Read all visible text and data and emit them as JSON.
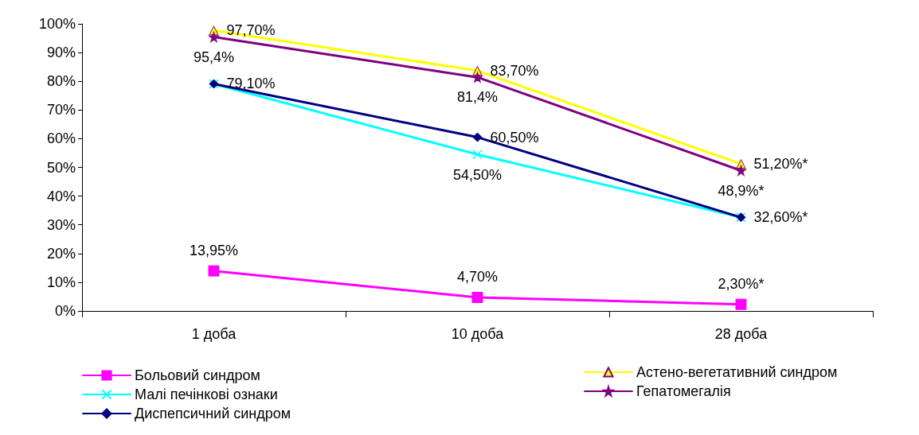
{
  "chart_data": {
    "type": "line",
    "categories": [
      "1 доба",
      "10 доба",
      "28 доба"
    ],
    "ylim": [
      0,
      100
    ],
    "yticks": [
      {
        "value": 0,
        "label": "0%"
      },
      {
        "value": 10,
        "label": "10%"
      },
      {
        "value": 20,
        "label": "20%"
      },
      {
        "value": 30,
        "label": "30%"
      },
      {
        "value": 40,
        "label": "40%"
      },
      {
        "value": 50,
        "label": "50%"
      },
      {
        "value": 60,
        "label": "60%"
      },
      {
        "value": 70,
        "label": "70%"
      },
      {
        "value": 80,
        "label": "80%"
      },
      {
        "value": 90,
        "label": "90%"
      },
      {
        "value": 100,
        "label": "100%"
      }
    ],
    "legend": "bottom",
    "series": [
      {
        "name": "Больовий синдром",
        "color": "#ff00ff",
        "marker": "square",
        "values": [
          13.95,
          4.7,
          2.3
        ],
        "value_labels": [
          "13,95%",
          "4,70%",
          "2,30%*"
        ]
      },
      {
        "name": "Астено-вегетативний синдром",
        "color": "#ffff00",
        "marker": "triangle",
        "values": [
          97.7,
          83.7,
          51.2
        ],
        "value_labels": [
          "97,70%",
          "83,70%",
          "51,20%*"
        ]
      },
      {
        "name": "Малі печінкові ознаки",
        "color": "#00ffff",
        "marker": "cross",
        "values": [
          79.1,
          54.5,
          32.6
        ],
        "value_labels": [
          null,
          "54,50%",
          null
        ]
      },
      {
        "name": "Гепатомегалія",
        "color": "#800080",
        "marker": "star",
        "values": [
          95.4,
          81.4,
          48.9
        ],
        "value_labels": [
          "95,4%",
          "81,4%",
          "48,9%*"
        ]
      },
      {
        "name": "Диспепсичний синдром",
        "color": "#000080",
        "marker": "diamond",
        "values": [
          79.1,
          60.5,
          32.6
        ],
        "value_labels": [
          "79,10%",
          "60,50%",
          "32,60%*"
        ]
      }
    ]
  }
}
